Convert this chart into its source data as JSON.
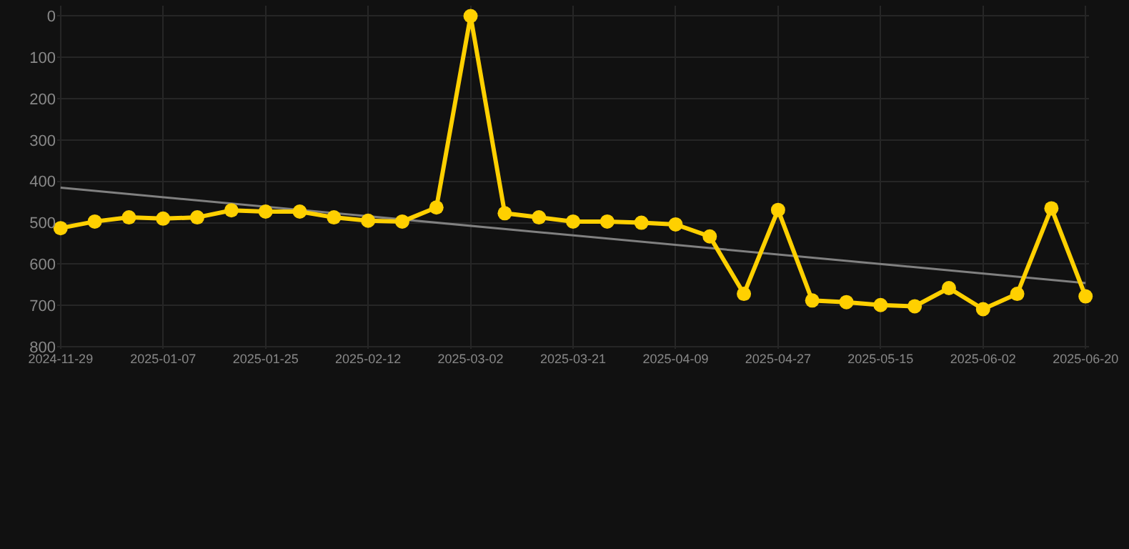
{
  "chart_data": {
    "type": "line",
    "categories": [
      "2024-11-29",
      null,
      null,
      "2025-01-07",
      null,
      null,
      "2025-01-25",
      null,
      null,
      "2025-02-12",
      null,
      null,
      "2025-03-02",
      null,
      null,
      "2025-03-21",
      null,
      null,
      "2025-04-09",
      null,
      null,
      "2025-04-27",
      null,
      null,
      "2025-05-15",
      null,
      null,
      "2025-06-02",
      null,
      null,
      "2025-06-20"
    ],
    "series": [
      {
        "color": "#ffd000",
        "marker": "circle",
        "values": [
          513,
          497,
          487,
          490,
          487,
          470,
          473,
          473,
          487,
          495,
          497,
          463,
          0,
          477,
          487,
          497,
          497,
          500,
          504,
          533,
          672,
          469,
          688,
          692,
          699,
          702,
          658,
          709,
          672,
          465,
          678
        ]
      },
      {
        "type": "line",
        "color": "#808080",
        "marker": "none",
        "values": [
          415,
          null,
          null,
          null,
          null,
          null,
          null,
          null,
          null,
          null,
          null,
          null,
          null,
          null,
          null,
          null,
          null,
          null,
          null,
          null,
          null,
          null,
          null,
          null,
          null,
          null,
          null,
          null,
          null,
          null,
          646
        ]
      }
    ],
    "ylim": [
      805,
      -25
    ],
    "yticks": [
      0,
      100,
      200,
      300,
      400,
      500,
      600,
      700,
      800
    ],
    "grid": true
  }
}
